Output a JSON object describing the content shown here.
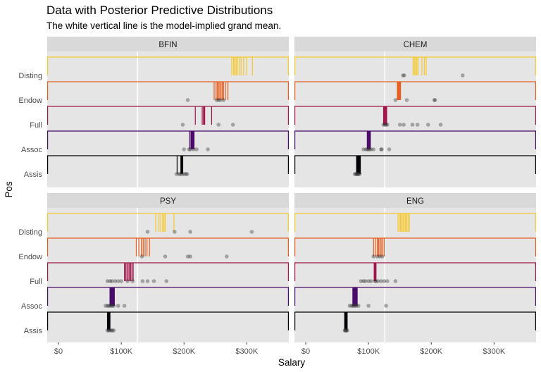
{
  "title": "Data with Posterior Predictive Distributions",
  "subtitle": "The white vertical line is the model-implied grand mean.",
  "chart_data": {
    "type": "scatter",
    "xlabel": "Salary",
    "ylabel": "Pos",
    "xlim": [
      -18000,
      367000
    ],
    "x_ticks": [
      0,
      100000,
      200000,
      300000
    ],
    "x_tick_labels": [
      "$0",
      "$100K",
      "$200K",
      "$300K"
    ],
    "grand_mean": 126000,
    "levels": [
      "Disting",
      "Endow",
      "Full",
      "Assoc",
      "Assis"
    ],
    "level_colors": [
      "#F6C92C",
      "#E85D1F",
      "#A1174A",
      "#4A0B6A",
      "#000004"
    ],
    "panel_bg": "#E5E5E5",
    "strip_bg": "#D9D9D9",
    "point_color": "#333333",
    "panels": [
      {
        "name": "BFIN",
        "posterior_draws": {
          "Disting": [
            276000,
            279000,
            281000,
            283000,
            285000,
            288000,
            291000,
            295000,
            300000,
            309000
          ],
          "Endow": [
            248000,
            251000,
            253000,
            255000,
            257000,
            259000,
            261000,
            263000,
            266000,
            270000
          ],
          "Full": [
            218000,
            229000,
            231000,
            232000,
            233000,
            244000
          ],
          "Assoc": [
            209000,
            211000,
            212000,
            213000,
            214000,
            215000,
            216000
          ],
          "Assis": [
            189000,
            195000,
            196000,
            197000,
            198000
          ]
        },
        "observations": {
          "Disting": [],
          "Endow": [
            206000,
            252000,
            255000,
            258000,
            263000
          ],
          "Full": [
            198000,
            255000,
            278000
          ],
          "Assoc": [
            200000,
            208000,
            210000,
            215000,
            220000,
            238000
          ],
          "Assis": [
            188000,
            192000,
            194000,
            197000,
            200000,
            203000,
            205000
          ]
        }
      },
      {
        "name": "CHEM",
        "posterior_draws": {
          "Disting": [
            171000,
            173000,
            175000,
            177000,
            179000,
            185000,
            189000,
            192000
          ],
          "Endow": [
            146000,
            147000,
            148000,
            149000,
            150000,
            151000
          ],
          "Full": [
            124000,
            125000,
            126000,
            127000,
            128000,
            129000
          ],
          "Assoc": [
            98000,
            99000,
            100000,
            101000,
            102000,
            103000
          ],
          "Assis": [
            81000,
            82000,
            83000,
            84000,
            85000,
            86000,
            87000
          ]
        },
        "observations": {
          "Disting": [
            155000,
            157000,
            250000
          ],
          "Endow": [
            143000,
            161000,
            205000,
            206000
          ],
          "Full": [
            124000,
            126000,
            128000,
            130000,
            150000,
            156000,
            170000,
            178000,
            195000,
            215000
          ],
          "Assoc": [
            92000,
            96000,
            98000,
            100000,
            102000,
            104000,
            108000,
            120000,
            121000,
            133000
          ],
          "Assis": [
            78000,
            80000,
            81000,
            82000,
            83000,
            84000,
            86000
          ]
        }
      },
      {
        "name": "PSY",
        "posterior_draws": {
          "Disting": [
            155000,
            160000,
            163000,
            166000,
            168000,
            170000,
            184000
          ],
          "Endow": [
            124000,
            128000,
            132000,
            135000,
            138000,
            141000,
            145000
          ],
          "Full": [
            105000,
            107000,
            109000,
            111000,
            113000,
            115000,
            117000,
            119000
          ],
          "Assoc": [
            82000,
            83000,
            84000,
            85000,
            86000,
            87000,
            88000,
            89000
          ],
          "Assis": [
            78000,
            79000,
            80000,
            81000,
            82000
          ]
        },
        "observations": {
          "Disting": [
            142000,
            185000,
            210000,
            308000
          ],
          "Endow": [
            133000,
            170000,
            206000,
            210000,
            268000
          ],
          "Full": [
            78000,
            82000,
            85000,
            90000,
            95000,
            100000,
            110000,
            118000,
            134000,
            142000,
            152000,
            172000
          ],
          "Assoc": [
            75000,
            78000,
            80000,
            82000,
            84000,
            86000,
            88000,
            95000,
            105000
          ],
          "Assis": [
            78000,
            80000,
            82000,
            84000,
            86000,
            88000
          ]
        }
      },
      {
        "name": "ENG",
        "posterior_draws": {
          "Disting": [
            147000,
            149000,
            151000,
            153000,
            155000,
            157000,
            159000,
            161000,
            163000,
            165000
          ],
          "Endow": [
            108000,
            111000,
            114000,
            116000,
            118000,
            120000,
            122000,
            125000
          ],
          "Full": [
            109000,
            110000,
            111000,
            112000
          ],
          "Assoc": [
            75000,
            76000,
            77000,
            78000,
            79000,
            80000,
            81000,
            82000
          ],
          "Assis": [
            62000,
            63000,
            64000,
            65000,
            66000
          ]
        },
        "observations": {
          "Disting": [],
          "Endow": [
            108000,
            114000,
            118000,
            122000
          ],
          "Full": [
            88000,
            92000,
            95000,
            100000,
            104000,
            110000,
            112000,
            115000,
            120000,
            125000,
            130000,
            143000
          ],
          "Assoc": [
            70000,
            73000,
            75000,
            77000,
            79000,
            81000,
            84000,
            100000,
            128000
          ],
          "Assis": [
            62000,
            63000,
            64000,
            65000,
            66000
          ]
        }
      }
    ]
  }
}
